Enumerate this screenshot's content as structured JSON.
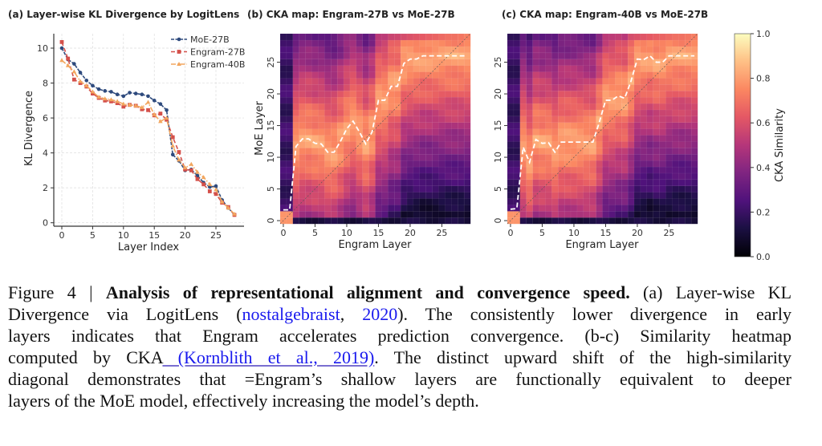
{
  "panels": {
    "a_title": "(a) Layer-wise KL Divergence by LogitLens",
    "b_title": "(b) CKA map: Engram-27B vs MoE-27B",
    "c_title": "(c) CKA map: Engram-40B vs MoE-27B"
  },
  "chart_data": [
    {
      "type": "line",
      "title": "(a) Layer-wise KL Divergence by LogitLens",
      "xlabel": "Layer Index",
      "ylabel": "KL Divergence",
      "xlim": [
        -1.3,
        29.3
      ],
      "ylim": [
        -0.2,
        10.8
      ],
      "xticks": [
        "0",
        "5",
        "10",
        "15",
        "20",
        "25"
      ],
      "yticks": [
        "0",
        "2",
        "4",
        "6",
        "8",
        "10"
      ],
      "grid": true,
      "legend": "top-right",
      "x": [
        0,
        1,
        2,
        3,
        4,
        5,
        6,
        7,
        8,
        9,
        10,
        11,
        12,
        13,
        14,
        15,
        16,
        17,
        18,
        19,
        20,
        21,
        22,
        23,
        24,
        25,
        26,
        27,
        28
      ],
      "series": [
        {
          "name": "MoE-27B",
          "color": "#2e4a7d",
          "marker": "circle",
          "values": [
            10.0,
            9.35,
            9.1,
            8.6,
            8.15,
            7.85,
            7.65,
            7.55,
            7.5,
            7.35,
            7.25,
            7.45,
            7.4,
            7.35,
            7.25,
            7.0,
            6.8,
            6.45,
            3.9,
            3.55,
            3.0,
            3.05,
            2.7,
            2.3,
            2.05,
            2.1,
            1.3,
            0.85,
            0.45
          ]
        },
        {
          "name": "Engram-27B",
          "color": "#d4504a",
          "marker": "square",
          "values": [
            10.35,
            9.4,
            8.2,
            8.0,
            7.8,
            7.4,
            7.15,
            7.0,
            6.95,
            6.85,
            6.65,
            6.75,
            6.7,
            6.5,
            6.45,
            6.15,
            6.25,
            5.9,
            4.9,
            4.05,
            3.05,
            3.0,
            2.5,
            2.2,
            1.8,
            1.65,
            1.15,
            0.9,
            0.45
          ]
        },
        {
          "name": "Engram-40B",
          "color": "#f2a65e",
          "marker": "triangle",
          "values": [
            9.3,
            9.0,
            8.65,
            8.1,
            7.85,
            7.5,
            7.2,
            7.1,
            7.05,
            6.95,
            6.8,
            6.75,
            6.7,
            6.6,
            6.9,
            6.2,
            5.8,
            6.0,
            4.4,
            3.6,
            3.15,
            3.35,
            2.9,
            2.6,
            2.2,
            1.9,
            1.2,
            0.85,
            0.5
          ]
        }
      ]
    },
    {
      "type": "heatmap",
      "title": "(b) CKA map: Engram-27B vs MoE-27B",
      "xlabel": "Engram Layer",
      "ylabel": "MoE Layer",
      "n_x": 30,
      "n_y": 30,
      "xticks": [
        "0",
        "5",
        "10",
        "15",
        "20",
        "25"
      ],
      "yticks": [
        "0",
        "5",
        "10",
        "15",
        "20",
        "25"
      ],
      "colormap": "magma",
      "zlim": [
        0,
        1
      ],
      "argmax_path": [
        [
          0,
          1.7
        ],
        [
          1,
          1.7
        ],
        [
          2,
          11.7
        ],
        [
          3,
          12.9
        ],
        [
          4,
          12.9
        ],
        [
          5,
          12.2
        ],
        [
          6,
          12.1
        ],
        [
          7,
          10.8
        ],
        [
          8,
          10.8
        ],
        [
          9,
          12.5
        ],
        [
          10,
          14.5
        ],
        [
          11,
          15.7
        ],
        [
          12,
          14
        ],
        [
          13,
          12.1
        ],
        [
          14,
          14
        ],
        [
          15,
          19
        ],
        [
          16,
          19
        ],
        [
          17,
          21.2
        ],
        [
          18,
          21.2
        ],
        [
          19,
          24.8
        ],
        [
          20,
          25.5
        ],
        [
          21,
          25.5
        ],
        [
          22,
          26
        ],
        [
          29,
          26
        ]
      ]
    },
    {
      "type": "heatmap",
      "title": "(c) CKA map: Engram-40B vs MoE-27B",
      "xlabel": "Engram Layer",
      "n_x": 30,
      "n_y": 30,
      "xticks": [
        "0",
        "5",
        "10",
        "15",
        "20",
        "25"
      ],
      "yticks": [
        "0",
        "5",
        "10",
        "15",
        "20",
        "25"
      ],
      "colormap": "magma",
      "zlim": [
        0,
        1
      ],
      "argmax_path": [
        [
          0,
          1.8
        ],
        [
          1,
          1.9
        ],
        [
          2,
          11.6
        ],
        [
          3,
          9.2
        ],
        [
          4,
          12.8
        ],
        [
          5,
          12.2
        ],
        [
          6,
          12.3
        ],
        [
          7,
          10.8
        ],
        [
          8,
          12.4
        ],
        [
          13,
          12.4
        ],
        [
          14,
          15.5
        ],
        [
          15,
          19
        ],
        [
          16,
          19
        ],
        [
          17,
          19.7
        ],
        [
          18,
          19.3
        ],
        [
          19,
          22
        ],
        [
          20,
          25.5
        ],
        [
          21,
          25.4
        ],
        [
          22,
          26
        ],
        [
          23,
          25
        ],
        [
          24,
          25
        ],
        [
          25,
          26
        ],
        [
          29,
          26
        ]
      ]
    }
  ],
  "colorbar": {
    "label": "CKA Similarity",
    "ticks": [
      "0.0",
      "0.2",
      "0.4",
      "0.6",
      "0.8",
      "1.0"
    ]
  },
  "caption": {
    "lines": [
      [
        "Figure 4 | ",
        "Analysis of representational alignment and convergence speed.",
        " (a) Layer-wise KL"
      ],
      [
        "Divergence via LogitLens (",
        "nostalgebraist",
        ", ",
        "2020",
        "). The consistently lower divergence in early"
      ],
      [
        "layers indicates that Engram accelerates prediction convergence.  (b-c) Similarity heatmap"
      ],
      [
        "computed by CKA",
        " (Kornblith et al., 2019)",
        ". The distinct upward shift of the high-similarity"
      ],
      [
        "diagonal demonstrates that =Engram’s shallow layers are functionally equivalent to deeper"
      ],
      [
        "layers of the MoE model, effectively increasing the model’s depth."
      ]
    ]
  }
}
